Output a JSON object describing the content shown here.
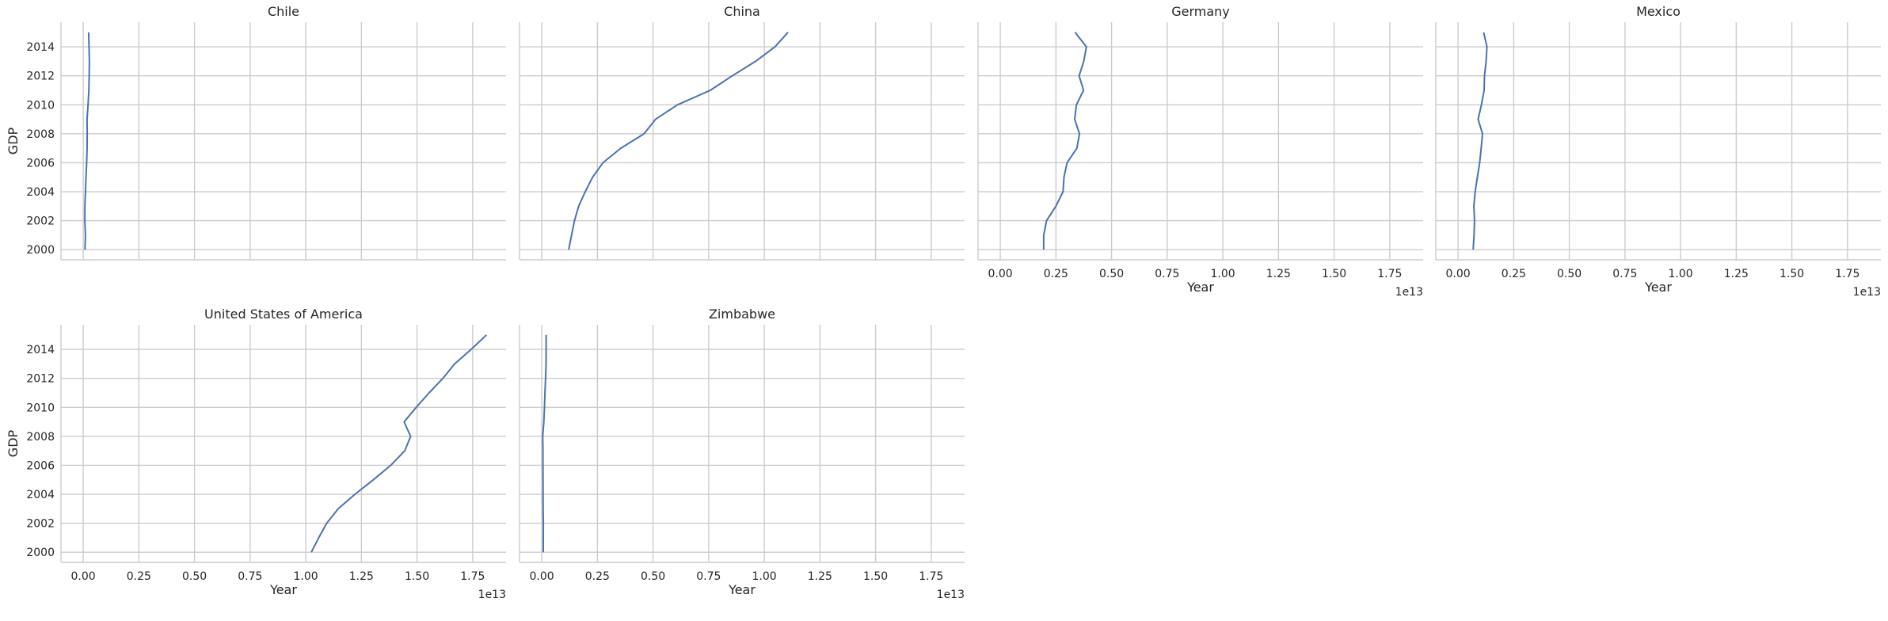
{
  "chart_data": {
    "type": "line",
    "layout": "facet grid, 2 rows x 4 columns, shared axes",
    "xlabel": "Year",
    "ylabel": "GDP",
    "x_offset_label": "1e13",
    "xlim": [
      -0.1,
      1.9
    ],
    "ylim": [
      1999.3,
      2015.7
    ],
    "x_ticks": [
      0.0,
      0.25,
      0.5,
      0.75,
      1.0,
      1.25,
      1.5,
      1.75
    ],
    "x_tick_labels": [
      "0.00",
      "0.25",
      "0.50",
      "0.75",
      "1.00",
      "1.25",
      "1.50",
      "1.75"
    ],
    "y_ticks": [
      2000,
      2002,
      2004,
      2006,
      2008,
      2010,
      2012,
      2014
    ],
    "y_tick_labels": [
      "2000",
      "2002",
      "2004",
      "2006",
      "2008",
      "2010",
      "2012",
      "2014"
    ],
    "grid": true,
    "line_color": "#4c72b0",
    "panels": [
      {
        "title": "Chile",
        "x": [
          0.0078,
          0.0099,
          0.007,
          0.0076,
          0.0101,
          0.0123,
          0.0154,
          0.0173,
          0.0179,
          0.0172,
          0.0218,
          0.0252,
          0.0267,
          0.0278,
          0.026,
          0.0243
        ],
        "y": [
          2000,
          2001,
          2002,
          2003,
          2004,
          2005,
          2006,
          2007,
          2008,
          2009,
          2010,
          2011,
          2012,
          2013,
          2014,
          2015
        ]
      },
      {
        "title": "China",
        "x": [
          0.1211,
          0.1339,
          0.1471,
          0.166,
          0.1955,
          0.2286,
          0.2752,
          0.3552,
          0.4598,
          0.511,
          0.6101,
          0.7573,
          0.8561,
          0.9607,
          1.0482,
          1.1065
        ],
        "y": [
          2000,
          2001,
          2002,
          2003,
          2004,
          2005,
          2006,
          2007,
          2008,
          2009,
          2010,
          2011,
          2012,
          2013,
          2014,
          2015
        ]
      },
      {
        "title": "Germany",
        "x": [
          0.195,
          0.195,
          0.208,
          0.25,
          0.282,
          0.286,
          0.3,
          0.344,
          0.356,
          0.334,
          0.342,
          0.374,
          0.354,
          0.375,
          0.387,
          0.336
        ],
        "y": [
          2000,
          2001,
          2002,
          2003,
          2004,
          2005,
          2006,
          2007,
          2008,
          2009,
          2010,
          2011,
          2012,
          2013,
          2014,
          2015
        ]
      },
      {
        "title": "Mexico",
        "x": [
          0.068,
          0.072,
          0.074,
          0.071,
          0.077,
          0.087,
          0.097,
          0.104,
          0.11,
          0.09,
          0.105,
          0.117,
          0.119,
          0.126,
          0.13,
          0.115
        ],
        "y": [
          2000,
          2001,
          2002,
          2003,
          2004,
          2005,
          2006,
          2007,
          2008,
          2009,
          2010,
          2011,
          2012,
          2013,
          2014,
          2015
        ]
      },
      {
        "title": "United States of America",
        "x": [
          1.025,
          1.058,
          1.094,
          1.146,
          1.221,
          1.304,
          1.382,
          1.445,
          1.471,
          1.442,
          1.496,
          1.554,
          1.616,
          1.669,
          1.743,
          1.812
        ],
        "y": [
          2000,
          2001,
          2002,
          2003,
          2004,
          2005,
          2006,
          2007,
          2008,
          2009,
          2010,
          2011,
          2012,
          2013,
          2014,
          2015
        ]
      },
      {
        "title": "Zimbabwe",
        "x": [
          0.0066,
          0.0068,
          0.007,
          0.0059,
          0.0058,
          0.0057,
          0.0054,
          0.0052,
          0.0044,
          0.0093,
          0.012,
          0.0141,
          0.0171,
          0.0191,
          0.0194,
          0.0195
        ],
        "y": [
          2000,
          2001,
          2002,
          2003,
          2004,
          2005,
          2006,
          2007,
          2008,
          2009,
          2010,
          2011,
          2012,
          2013,
          2014,
          2015
        ]
      }
    ]
  }
}
